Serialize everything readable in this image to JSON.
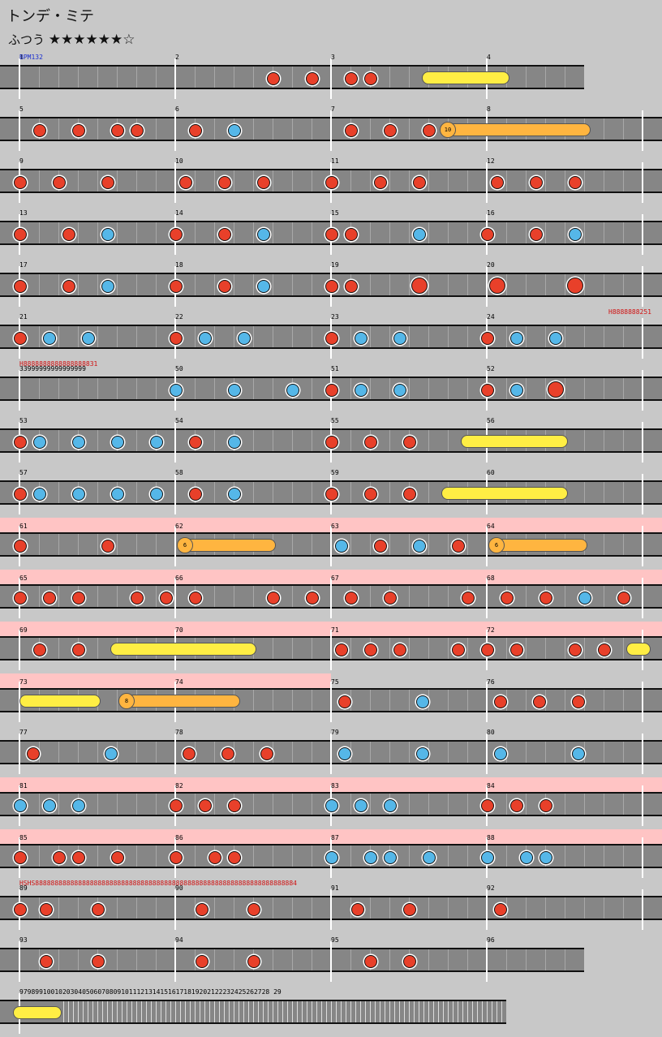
{
  "title": "トンデ・ミテ",
  "difficulty": {
    "label": "ふつう",
    "stars": "★★★★★★☆"
  },
  "bpm_label": "BPM132",
  "colors": {
    "don": "#e8402a",
    "ka": "#55b7e8",
    "roll": "#ffee44",
    "balloon": "#ffb540",
    "gogo": "#ffc4c4"
  },
  "scroll_labels": [
    {
      "row": 5,
      "text": "H8888888251"
    },
    {
      "row": 6,
      "text": "H8888888888888888831"
    },
    {
      "row": 16,
      "text": "HSHS8888888888888888888888888888888888888888888888888888888888888888884"
    }
  ],
  "measure_rows": [
    {
      "measures": [
        "1",
        "2",
        "3",
        "4"
      ]
    },
    {
      "measures": [
        "5",
        "6",
        "7",
        "8"
      ]
    },
    {
      "measures": [
        "9",
        "10",
        "11",
        "12"
      ]
    },
    {
      "measures": [
        "13",
        "14",
        "15",
        "16"
      ]
    },
    {
      "measures": [
        "17",
        "18",
        "19",
        "20"
      ]
    },
    {
      "measures": [
        "21",
        "22",
        "23",
        "24"
      ]
    },
    {
      "measures": [
        "33999999999999999",
        "50",
        "51",
        "52"
      ]
    },
    {
      "measures": [
        "53",
        "54",
        "55",
        "56"
      ]
    },
    {
      "measures": [
        "57",
        "58",
        "59",
        "60"
      ]
    },
    {
      "measures": [
        "61",
        "62",
        "63",
        "64"
      ]
    },
    {
      "measures": [
        "65",
        "66",
        "67",
        "68"
      ]
    },
    {
      "measures": [
        "69",
        "70",
        "71",
        "72"
      ]
    },
    {
      "measures": [
        "73",
        "74",
        "75",
        "76"
      ]
    },
    {
      "measures": [
        "77",
        "78",
        "79",
        "80"
      ]
    },
    {
      "measures": [
        "81",
        "82",
        "83",
        "84"
      ]
    },
    {
      "measures": [
        "85",
        "86",
        "87",
        "88"
      ]
    },
    {
      "measures": [
        "89",
        "90",
        "91",
        "92"
      ]
    },
    {
      "measures": [
        "93",
        "94",
        "95",
        "96"
      ]
    },
    {
      "measures": [
        "9798991001020304050607080910111213141516171819202122232425262728 29"
      ]
    }
  ],
  "balloons": [
    "10",
    "6",
    "6",
    "8"
  ]
}
